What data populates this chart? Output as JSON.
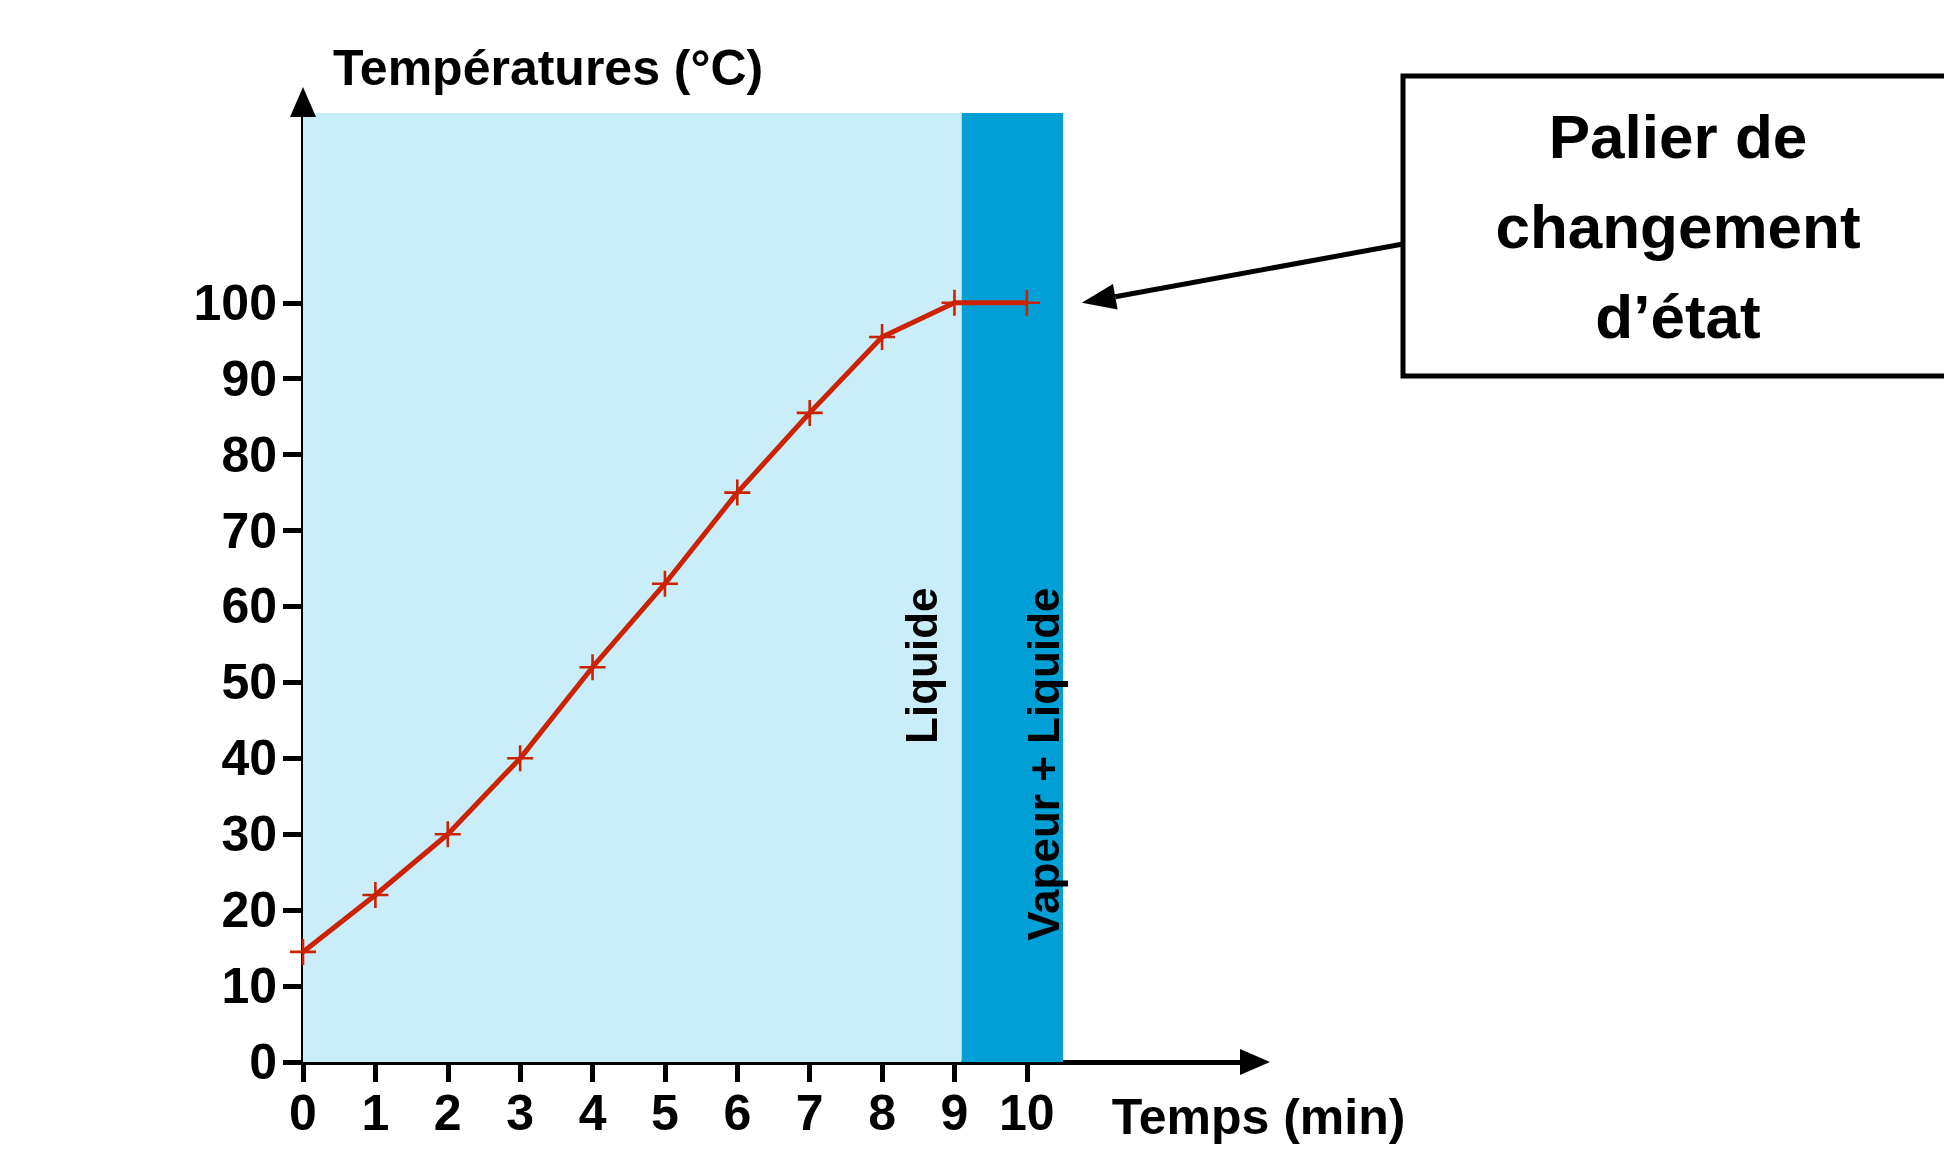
{
  "chart_data": {
    "type": "line",
    "xlabel": "Temps (min)",
    "ylabel": "Températures (°C)",
    "x": [
      0,
      1,
      2,
      3,
      4,
      5,
      6,
      7,
      8,
      9,
      10
    ],
    "series": [
      {
        "color": "#cc2200",
        "values": [
          14.5,
          22,
          30,
          40,
          52,
          63,
          75,
          85.5,
          95.5,
          100,
          100
        ]
      }
    ],
    "xlim": [
      0,
      13
    ],
    "ylim": [
      0,
      125
    ],
    "xticks": [
      0,
      1,
      2,
      3,
      4,
      5,
      6,
      7,
      8,
      9,
      10
    ],
    "yticks": [
      0,
      10,
      20,
      30,
      40,
      50,
      60,
      70,
      80,
      90,
      100
    ],
    "bands": [
      {
        "axis": "x",
        "from": 0,
        "to": 9.1,
        "label": "Liquide",
        "color": "#c9eefa"
      },
      {
        "axis": "x",
        "from": 9.1,
        "to": 10.5,
        "label": "Vapeur + Liquide",
        "color": "#00a0d6"
      }
    ],
    "annotations": [
      "Palier de\nchangement\nd’état"
    ],
    "marker": "cross",
    "grid": false
  }
}
